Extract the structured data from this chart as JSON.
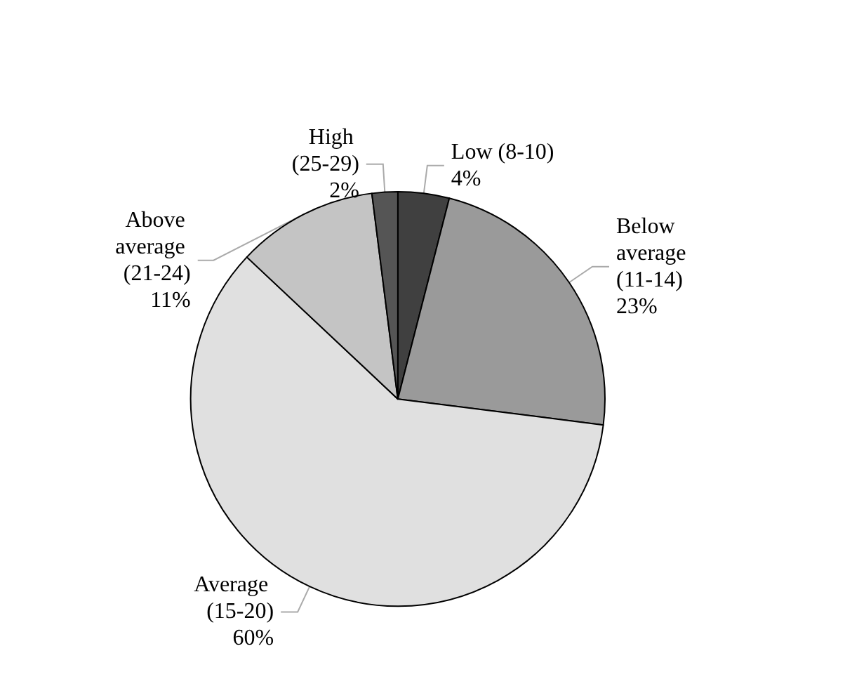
{
  "chart_data": {
    "type": "pie",
    "categories": [
      "Low (8-10)",
      "Below average (11-14)",
      "Average (15-20)",
      "Above average (21-24)",
      "High (25-29)"
    ],
    "values": [
      4,
      23,
      60,
      11,
      2
    ],
    "value_labels": [
      "4%",
      "23%",
      "60%",
      "11%",
      "2%"
    ],
    "colors": [
      "#404040",
      "#9a9a9a",
      "#e0e0e0",
      "#c4c4c4",
      "#555555"
    ],
    "legend": false
  }
}
